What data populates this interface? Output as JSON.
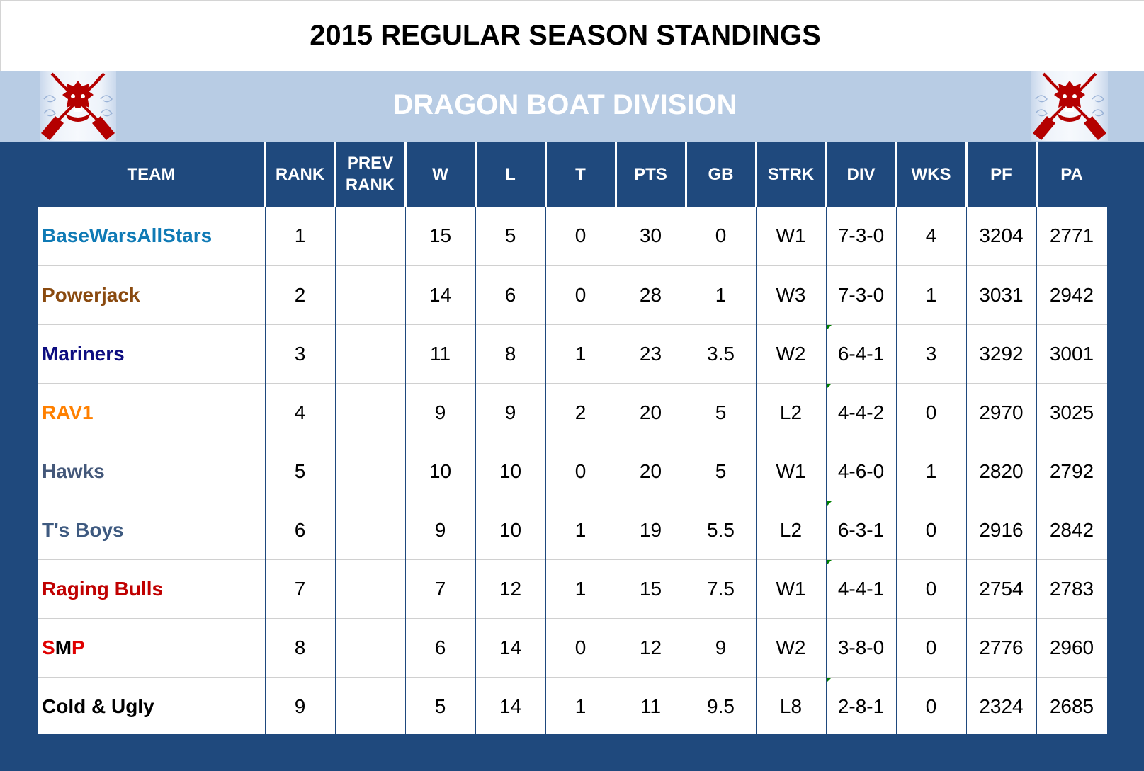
{
  "page": {
    "title": "2015 REGULAR SEASON STANDINGS",
    "division": "DRAGON BOAT DIVISION",
    "logo_left": "dragon-boat-logo",
    "logo_right": "dragon-boat-logo"
  },
  "colors": {
    "header_bg": "#1f497d",
    "division_bg": "#b8cce4",
    "grid_line": "#1f497d",
    "row_line": "#d0d0d0",
    "comment_marker": "#008000"
  },
  "columns": [
    {
      "key": "team",
      "label": "TEAM"
    },
    {
      "key": "rank",
      "label": "RANK"
    },
    {
      "key": "prev_rank",
      "label": "PREV RANK"
    },
    {
      "key": "w",
      "label": "W"
    },
    {
      "key": "l",
      "label": "L"
    },
    {
      "key": "t",
      "label": "T"
    },
    {
      "key": "pts",
      "label": "PTS"
    },
    {
      "key": "gb",
      "label": "GB"
    },
    {
      "key": "strk",
      "label": "STRK"
    },
    {
      "key": "div",
      "label": "DIV"
    },
    {
      "key": "wks",
      "label": "WKS"
    },
    {
      "key": "pf",
      "label": "PF"
    },
    {
      "key": "pa",
      "label": "PA"
    }
  ],
  "rows": [
    {
      "team": "BaseWarsAllStars",
      "team_color": "#0f7ab5",
      "rank": "1",
      "prev_rank": "",
      "w": "15",
      "l": "5",
      "t": "0",
      "pts": "30",
      "gb": "0",
      "strk": "W1",
      "div": "7-3-0",
      "div_note": false,
      "wks": "4",
      "pf": "3204",
      "pa": "2771"
    },
    {
      "team": "Powerjack",
      "team_color": "#8a4a0f",
      "rank": "2",
      "prev_rank": "",
      "w": "14",
      "l": "6",
      "t": "0",
      "pts": "28",
      "gb": "1",
      "strk": "W3",
      "div": "7-3-0",
      "div_note": false,
      "wks": "1",
      "pf": "3031",
      "pa": "2942"
    },
    {
      "team": "Mariners",
      "team_color": "#0d0d80",
      "rank": "3",
      "prev_rank": "",
      "w": "11",
      "l": "8",
      "t": "1",
      "pts": "23",
      "gb": "3.5",
      "strk": "W2",
      "div": "6-4-1",
      "div_note": true,
      "wks": "3",
      "pf": "3292",
      "pa": "3001"
    },
    {
      "team": "RAV1",
      "team_color": "#ff8000",
      "rank": "4",
      "prev_rank": "",
      "w": "9",
      "l": "9",
      "t": "2",
      "pts": "20",
      "gb": "5",
      "strk": "L2",
      "div": "4-4-2",
      "div_note": true,
      "wks": "0",
      "pf": "2970",
      "pa": "3025"
    },
    {
      "team": "Hawks",
      "team_color": "#44587a",
      "rank": "5",
      "prev_rank": "",
      "w": "10",
      "l": "10",
      "t": "0",
      "pts": "20",
      "gb": "5",
      "strk": "W1",
      "div": "4-6-0",
      "div_note": false,
      "wks": "1",
      "pf": "2820",
      "pa": "2792"
    },
    {
      "team": "T's Boys",
      "team_color": "#3e5a80",
      "rank": "6",
      "prev_rank": "",
      "w": "9",
      "l": "10",
      "t": "1",
      "pts": "19",
      "gb": "5.5",
      "strk": "L2",
      "div": "6-3-1",
      "div_note": true,
      "wks": "0",
      "pf": "2916",
      "pa": "2842"
    },
    {
      "team": "Raging Bulls",
      "team_color": "#c00000",
      "rank": "7",
      "prev_rank": "",
      "w": "7",
      "l": "12",
      "t": "1",
      "pts": "15",
      "gb": "7.5",
      "strk": "W1",
      "div": "4-4-1",
      "div_note": true,
      "wks": "0",
      "pf": "2754",
      "pa": "2783"
    },
    {
      "team": "SMP",
      "team_parts": [
        {
          "text": "S",
          "color": "#e00000"
        },
        {
          "text": "M",
          "color": "#000000"
        },
        {
          "text": "P",
          "color": "#e00000"
        }
      ],
      "team_color": "#000000",
      "rank": "8",
      "prev_rank": "",
      "w": "6",
      "l": "14",
      "t": "0",
      "pts": "12",
      "gb": "9",
      "strk": "W2",
      "div": "3-8-0",
      "div_note": false,
      "wks": "0",
      "pf": "2776",
      "pa": "2960"
    },
    {
      "team": "Cold & Ugly",
      "team_color": "#000000",
      "rank": "9",
      "prev_rank": "",
      "w": "5",
      "l": "14",
      "t": "1",
      "pts": "11",
      "gb": "9.5",
      "strk": "L8",
      "div": "2-8-1",
      "div_note": true,
      "wks": "0",
      "pf": "2324",
      "pa": "2685"
    }
  ]
}
